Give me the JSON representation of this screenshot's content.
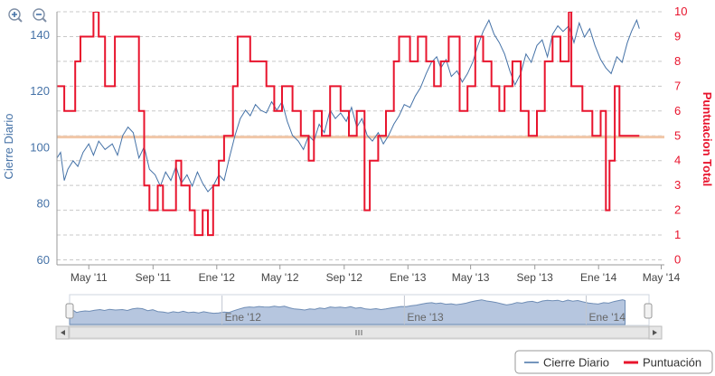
{
  "zoom_controls": {
    "zoom_in_icon": "zoom-in-icon",
    "zoom_out_icon": "zoom-out-icon"
  },
  "colors": {
    "close": "#4572a7",
    "score": "#e8142d",
    "reference": "#f1c7a8",
    "grid": "#c8c8c8",
    "left_axis_text": "#4572a7",
    "right_axis_text": "#e8142d",
    "navigator_fill": "#b6c6df",
    "navigator_line": "#6f8db5",
    "axis_text": "#444444"
  },
  "chart_data": {
    "type": "line",
    "x_range": [
      "2011-03",
      "2014-05"
    ],
    "x_tick_labels": [
      "May '11",
      "Sep '11",
      "Ene '12",
      "May '12",
      "Sep '12",
      "Ene '13",
      "May '13",
      "Sep '13",
      "Ene '14",
      "May '14"
    ],
    "left_axis": {
      "label": "Cierre Diario",
      "ticks": [
        60,
        80,
        100,
        120,
        140
      ],
      "range": [
        58,
        148
      ]
    },
    "right_axis": {
      "label": "Puntuacion Total",
      "ticks": [
        0,
        1,
        2,
        3,
        4,
        5,
        6,
        7,
        8,
        9,
        10
      ],
      "range": [
        -0.2,
        10
      ]
    },
    "reference_line": {
      "axis": "right",
      "value": 4.95
    },
    "grid": "horizontal dashed",
    "series": [
      {
        "name": "Cierre Diario",
        "axis": "left",
        "style": "line",
        "points": [
          [
            "2011-03-01",
            96
          ],
          [
            "2011-03-08",
            98
          ],
          [
            "2011-03-15",
            88
          ],
          [
            "2011-03-22",
            92
          ],
          [
            "2011-04-01",
            95
          ],
          [
            "2011-04-10",
            93
          ],
          [
            "2011-04-20",
            98
          ],
          [
            "2011-05-01",
            101
          ],
          [
            "2011-05-10",
            97
          ],
          [
            "2011-05-20",
            102
          ],
          [
            "2011-06-01",
            99
          ],
          [
            "2011-06-15",
            101
          ],
          [
            "2011-06-25",
            97
          ],
          [
            "2011-07-05",
            104
          ],
          [
            "2011-07-15",
            107
          ],
          [
            "2011-07-25",
            105
          ],
          [
            "2011-08-05",
            96
          ],
          [
            "2011-08-15",
            100
          ],
          [
            "2011-08-25",
            92
          ],
          [
            "2011-09-05",
            90
          ],
          [
            "2011-09-15",
            86
          ],
          [
            "2011-09-25",
            91
          ],
          [
            "2011-10-05",
            88
          ],
          [
            "2011-10-15",
            93
          ],
          [
            "2011-10-25",
            87
          ],
          [
            "2011-11-05",
            90
          ],
          [
            "2011-11-15",
            86
          ],
          [
            "2011-11-25",
            91
          ],
          [
            "2011-12-05",
            87
          ],
          [
            "2011-12-15",
            84
          ],
          [
            "2011-12-25",
            86
          ],
          [
            "2012-01-05",
            90
          ],
          [
            "2012-01-15",
            88
          ],
          [
            "2012-01-25",
            96
          ],
          [
            "2012-02-05",
            104
          ],
          [
            "2012-02-15",
            110
          ],
          [
            "2012-02-25",
            113
          ],
          [
            "2012-03-05",
            111
          ],
          [
            "2012-03-15",
            115
          ],
          [
            "2012-03-25",
            113
          ],
          [
            "2012-04-05",
            112
          ],
          [
            "2012-04-15",
            116
          ],
          [
            "2012-04-25",
            113
          ],
          [
            "2012-05-05",
            116
          ],
          [
            "2012-05-15",
            109
          ],
          [
            "2012-05-25",
            104
          ],
          [
            "2012-06-05",
            102
          ],
          [
            "2012-06-15",
            99
          ],
          [
            "2012-06-25",
            104
          ],
          [
            "2012-07-05",
            102
          ],
          [
            "2012-07-15",
            108
          ],
          [
            "2012-07-25",
            105
          ],
          [
            "2012-08-05",
            113
          ],
          [
            "2012-08-15",
            110
          ],
          [
            "2012-08-25",
            112
          ],
          [
            "2012-09-05",
            109
          ],
          [
            "2012-09-15",
            114
          ],
          [
            "2012-09-25",
            107
          ],
          [
            "2012-10-05",
            110
          ],
          [
            "2012-10-15",
            104
          ],
          [
            "2012-10-25",
            102
          ],
          [
            "2012-11-05",
            105
          ],
          [
            "2012-11-15",
            101
          ],
          [
            "2012-11-25",
            104
          ],
          [
            "2012-12-05",
            108
          ],
          [
            "2012-12-15",
            111
          ],
          [
            "2012-12-25",
            115
          ],
          [
            "2013-01-05",
            114
          ],
          [
            "2013-01-15",
            118
          ],
          [
            "2013-01-25",
            121
          ],
          [
            "2013-02-05",
            126
          ],
          [
            "2013-02-15",
            130
          ],
          [
            "2013-02-25",
            132
          ],
          [
            "2013-03-05",
            128
          ],
          [
            "2013-03-15",
            131
          ],
          [
            "2013-03-25",
            125
          ],
          [
            "2013-04-05",
            127
          ],
          [
            "2013-04-15",
            123
          ],
          [
            "2013-04-25",
            126
          ],
          [
            "2013-05-05",
            130
          ],
          [
            "2013-05-15",
            136
          ],
          [
            "2013-05-25",
            141
          ],
          [
            "2013-06-05",
            145
          ],
          [
            "2013-06-15",
            140
          ],
          [
            "2013-06-25",
            137
          ],
          [
            "2013-07-05",
            133
          ],
          [
            "2013-07-15",
            127
          ],
          [
            "2013-07-25",
            122
          ],
          [
            "2013-08-05",
            126
          ],
          [
            "2013-08-15",
            133
          ],
          [
            "2013-08-25",
            130
          ],
          [
            "2013-09-05",
            136
          ],
          [
            "2013-09-15",
            138
          ],
          [
            "2013-09-25",
            132
          ],
          [
            "2013-10-05",
            140
          ],
          [
            "2013-10-15",
            143
          ],
          [
            "2013-10-25",
            141
          ],
          [
            "2013-11-05",
            143
          ],
          [
            "2013-11-15",
            137
          ],
          [
            "2013-11-25",
            144
          ],
          [
            "2013-12-05",
            139
          ],
          [
            "2013-12-15",
            142
          ],
          [
            "2013-12-25",
            136
          ],
          [
            "2014-01-05",
            131
          ],
          [
            "2014-01-15",
            128
          ],
          [
            "2014-01-25",
            126
          ],
          [
            "2014-02-05",
            132
          ],
          [
            "2014-02-15",
            130
          ],
          [
            "2014-02-25",
            137
          ],
          [
            "2014-03-05",
            141
          ],
          [
            "2014-03-15",
            145
          ],
          [
            "2014-03-20",
            142
          ]
        ]
      },
      {
        "name": "Puntuación",
        "axis": "right",
        "style": "step",
        "points": [
          [
            "2011-03-01",
            7
          ],
          [
            "2011-03-15",
            6
          ],
          [
            "2011-04-05",
            8
          ],
          [
            "2011-04-15",
            9
          ],
          [
            "2011-05-10",
            10
          ],
          [
            "2011-05-20",
            9
          ],
          [
            "2011-06-01",
            7
          ],
          [
            "2011-06-20",
            9
          ],
          [
            "2011-07-25",
            9
          ],
          [
            "2011-08-05",
            6
          ],
          [
            "2011-08-15",
            3
          ],
          [
            "2011-08-25",
            2
          ],
          [
            "2011-09-10",
            3
          ],
          [
            "2011-09-20",
            2
          ],
          [
            "2011-10-15",
            4
          ],
          [
            "2011-10-25",
            3
          ],
          [
            "2011-11-10",
            2
          ],
          [
            "2011-11-20",
            1
          ],
          [
            "2011-12-05",
            2
          ],
          [
            "2011-12-15",
            1
          ],
          [
            "2011-12-25",
            3
          ],
          [
            "2012-01-05",
            4
          ],
          [
            "2012-01-15",
            5
          ],
          [
            "2012-02-01",
            7
          ],
          [
            "2012-02-10",
            9
          ],
          [
            "2012-03-05",
            8
          ],
          [
            "2012-04-05",
            7
          ],
          [
            "2012-04-20",
            6
          ],
          [
            "2012-05-05",
            7
          ],
          [
            "2012-05-25",
            6
          ],
          [
            "2012-06-10",
            5
          ],
          [
            "2012-06-25",
            4
          ],
          [
            "2012-07-05",
            6
          ],
          [
            "2012-07-20",
            5
          ],
          [
            "2012-08-05",
            7
          ],
          [
            "2012-08-25",
            6
          ],
          [
            "2012-09-10",
            5
          ],
          [
            "2012-09-25",
            6
          ],
          [
            "2012-10-10",
            2
          ],
          [
            "2012-10-20",
            4
          ],
          [
            "2012-11-05",
            5
          ],
          [
            "2012-11-20",
            6
          ],
          [
            "2012-12-05",
            8
          ],
          [
            "2012-12-15",
            9
          ],
          [
            "2013-01-05",
            8
          ],
          [
            "2013-01-20",
            9
          ],
          [
            "2013-02-05",
            8
          ],
          [
            "2013-02-20",
            7
          ],
          [
            "2013-03-05",
            8
          ],
          [
            "2013-03-20",
            9
          ],
          [
            "2013-04-10",
            6
          ],
          [
            "2013-04-25",
            7
          ],
          [
            "2013-05-10",
            9
          ],
          [
            "2013-05-25",
            8
          ],
          [
            "2013-06-10",
            7
          ],
          [
            "2013-06-25",
            6
          ],
          [
            "2013-07-05",
            7
          ],
          [
            "2013-07-20",
            8
          ],
          [
            "2013-08-05",
            6
          ],
          [
            "2013-08-20",
            5
          ],
          [
            "2013-09-05",
            6
          ],
          [
            "2013-09-20",
            8
          ],
          [
            "2013-10-05",
            9
          ],
          [
            "2013-10-20",
            8
          ],
          [
            "2013-11-05",
            10
          ],
          [
            "2013-11-10",
            7
          ],
          [
            "2013-12-01",
            6
          ],
          [
            "2013-12-20",
            5
          ],
          [
            "2014-01-05",
            6
          ],
          [
            "2014-01-15",
            2
          ],
          [
            "2014-01-22",
            4
          ],
          [
            "2014-02-01",
            7
          ],
          [
            "2014-02-10",
            5
          ],
          [
            "2014-03-20",
            5
          ]
        ]
      }
    ],
    "reference_series_color": "#f1c7a8",
    "navigator": {
      "tick_labels": [
        "Ene '12",
        "Ene '13",
        "Ene '14"
      ]
    },
    "legend": {
      "position": "bottom-right",
      "entries": [
        "Cierre Diario",
        "Puntuación"
      ]
    }
  }
}
